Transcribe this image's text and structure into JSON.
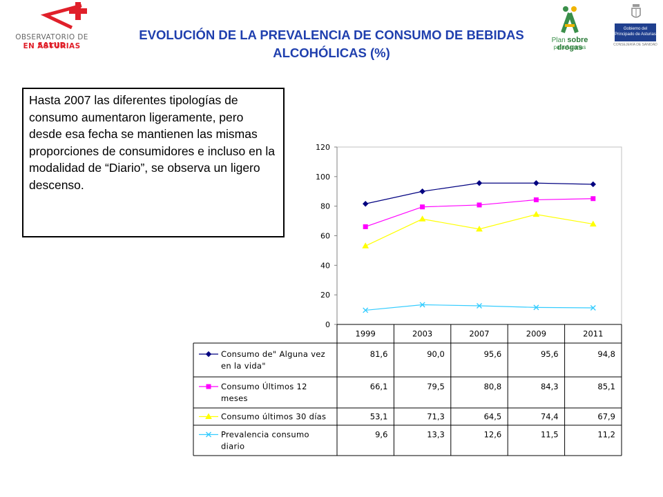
{
  "header": {
    "title": "EVOLUCIÓN DE LA PREVALENCIA DE CONSUMO DE BEBIDAS ALCOHÓLICAS (%)",
    "logos": {
      "observatorio": {
        "line1_prefix": "OBSERVATORIO DE ",
        "line1_bold": "SALUD",
        "line2": "EN ASTURIAS",
        "icon": "observatorio-plus-icon",
        "color": "#e0202a"
      },
      "plan": {
        "prefix": "Plan",
        "name": "sobre drogas",
        "sub": "para Asturias",
        "icon": "plan-drogas-figure-icon",
        "color": "#3a8f4a"
      },
      "gobierno": {
        "line1": "Gobierno del",
        "line2": "Principado de Asturias",
        "sub": "CONSEJERÍA DE SANIDAD",
        "icon": "coat-of-arms-icon",
        "color": "#1f3f8e"
      }
    }
  },
  "note": {
    "text": "Hasta 2007 las diferentes tipologías de consumo aumentaron ligeramente, pero desde esa fecha se mantienen las mismas proporciones de consumidores e incluso en la modalidad de “Diario”, se observa un ligero descenso."
  },
  "chart_data": {
    "type": "line",
    "title": "",
    "xlabel": "",
    "ylabel": "",
    "categories": [
      "1999",
      "2003",
      "2007",
      "2009",
      "2011"
    ],
    "ylim": [
      0,
      120
    ],
    "yticks": [
      0,
      20,
      40,
      60,
      80,
      100,
      120
    ],
    "grid": false,
    "legend": "data-table-below",
    "series": [
      {
        "name": "Consumo de\" Alguna vez en la vida\"",
        "label_lines": [
          "Consumo de\" Alguna vez",
          "en la vida\""
        ],
        "values": [
          81.6,
          90.0,
          95.6,
          95.6,
          94.8
        ],
        "display": [
          "81,6",
          "90,0",
          "95,6",
          "95,6",
          "94,8"
        ],
        "color": "#000080",
        "marker": "diamond"
      },
      {
        "name": "Consumo Últimos 12 meses",
        "label_lines": [
          "Consumo Últimos 12",
          "meses"
        ],
        "values": [
          66.1,
          79.5,
          80.8,
          84.3,
          85.1
        ],
        "display": [
          "66,1",
          "79,5",
          "80,8",
          "84,3",
          "85,1"
        ],
        "color": "#ff00ff",
        "marker": "square"
      },
      {
        "name": "Consumo últimos 30 días",
        "label_lines": [
          "Consumo últimos 30 días"
        ],
        "values": [
          53.1,
          71.3,
          64.5,
          74.4,
          67.9
        ],
        "display": [
          "53,1",
          "71,3",
          "64,5",
          "74,4",
          "67,9"
        ],
        "color": "#ffff00",
        "marker": "triangle"
      },
      {
        "name": "Prevalencia consumo diario",
        "label_lines": [
          "Prevalencia consumo",
          "diario"
        ],
        "values": [
          9.6,
          13.3,
          12.6,
          11.5,
          11.2
        ],
        "display": [
          "9,6",
          "13,3",
          "12,6",
          "11,5",
          "11,2"
        ],
        "color": "#33ccff",
        "marker": "x"
      }
    ]
  }
}
